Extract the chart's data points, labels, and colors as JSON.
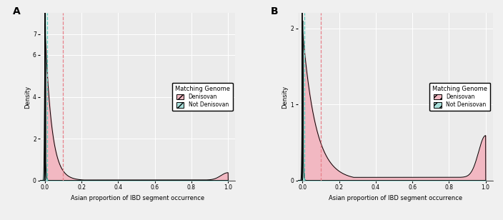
{
  "panel_A": {
    "label": "A",
    "ylim": [
      0,
      8
    ],
    "yticks": [
      0,
      2,
      4,
      6,
      7
    ],
    "xlim": [
      -0.025,
      1.04
    ],
    "xticks": [
      0.0,
      0.2,
      0.4,
      0.6,
      0.8,
      1.0
    ],
    "xtick_labels": [
      "0.0",
      "0.2",
      "0.4",
      "0.6",
      "0.8",
      "1.0"
    ],
    "xlabel": "Asian proportion of IBD segment occurrence",
    "ylabel": "Density",
    "vline_teal": 0.012,
    "vline_pink": 0.1,
    "vline_teal_color": "#5ECFBF",
    "vline_pink_color": "#E8808A"
  },
  "panel_B": {
    "label": "B",
    "ylim": [
      0,
      2.2
    ],
    "yticks": [
      0,
      1,
      2
    ],
    "xlim": [
      -0.025,
      1.04
    ],
    "xticks": [
      0.0,
      0.2,
      0.4,
      0.6,
      0.8,
      1.0
    ],
    "xtick_labels": [
      "0.0",
      "0.2",
      "0.4",
      "0.6",
      "0.8",
      "1.0"
    ],
    "xlabel": "Asian proportion of IBD segment occurrence",
    "ylabel": "Density",
    "vline_teal": 0.012,
    "vline_pink": 0.1,
    "vline_teal_color": "#5ECFBF",
    "vline_pink_color": "#E8808A"
  },
  "colors": {
    "pink_fill": "#F2B8C2",
    "green_fill": "#A8DFDA",
    "line": "#000000",
    "background": "#EBEBEB",
    "grid": "#FFFFFF"
  },
  "legend": {
    "title": "Matching Genome",
    "entries": [
      "Denisovan",
      "Not Denisovan"
    ]
  }
}
